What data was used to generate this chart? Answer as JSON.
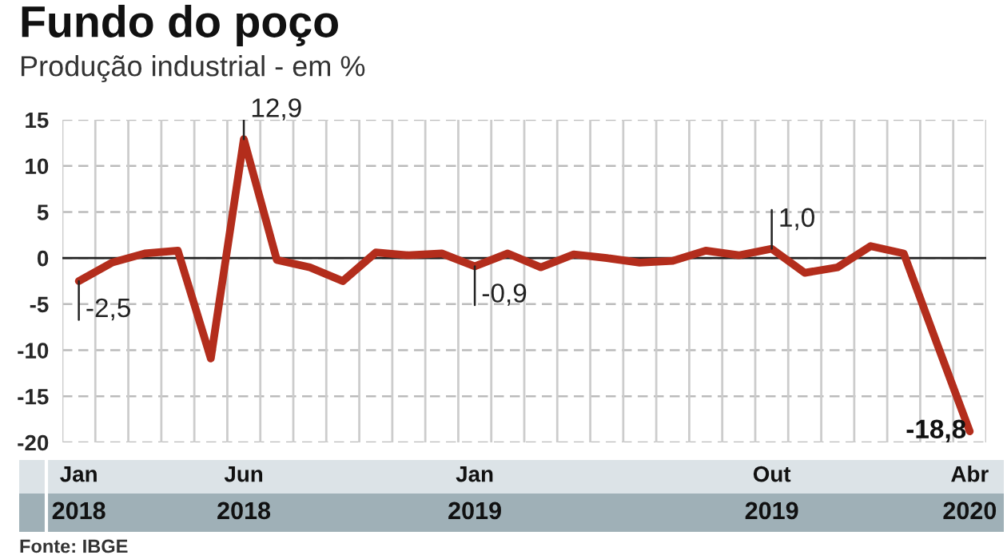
{
  "chart_data": {
    "type": "line",
    "title": "Fundo do poço",
    "subtitle": "Produção industrial - em %",
    "categories": [
      "Jan\n2018",
      null,
      null,
      null,
      null,
      "Jun\n2018",
      null,
      null,
      null,
      null,
      null,
      null,
      "Jan\n2019",
      null,
      null,
      null,
      null,
      null,
      null,
      null,
      null,
      "Out\n2019",
      null,
      null,
      null,
      null,
      null,
      "Abr\n2020"
    ],
    "values": [
      -2.5,
      -0.5,
      0.5,
      0.8,
      -10.9,
      12.9,
      -0.2,
      -1.0,
      -2.5,
      0.6,
      0.3,
      0.5,
      -0.9,
      0.5,
      -1.0,
      0.4,
      0.0,
      -0.5,
      -0.3,
      0.8,
      0.3,
      1.0,
      -1.6,
      -1.0,
      1.3,
      0.5,
      -9.2,
      -18.8
    ],
    "value_labels": [
      "-2,5",
      null,
      null,
      null,
      null,
      "12,9",
      null,
      null,
      null,
      null,
      null,
      null,
      "-0,9",
      null,
      null,
      null,
      null,
      null,
      null,
      null,
      null,
      "1,0",
      null,
      null,
      null,
      null,
      null,
      "-18,8"
    ],
    "color": "#b32d1c",
    "ylim": [
      -20,
      15
    ],
    "yticks": [
      -20,
      -15,
      -10,
      -5,
      0,
      5,
      10,
      15
    ],
    "grid": true,
    "ref_lines": [
      {
        "axis": "y",
        "value": 0,
        "color": "#222222",
        "line_style": "solid"
      }
    ],
    "annotations": [
      "Fonte: IBGE"
    ]
  }
}
